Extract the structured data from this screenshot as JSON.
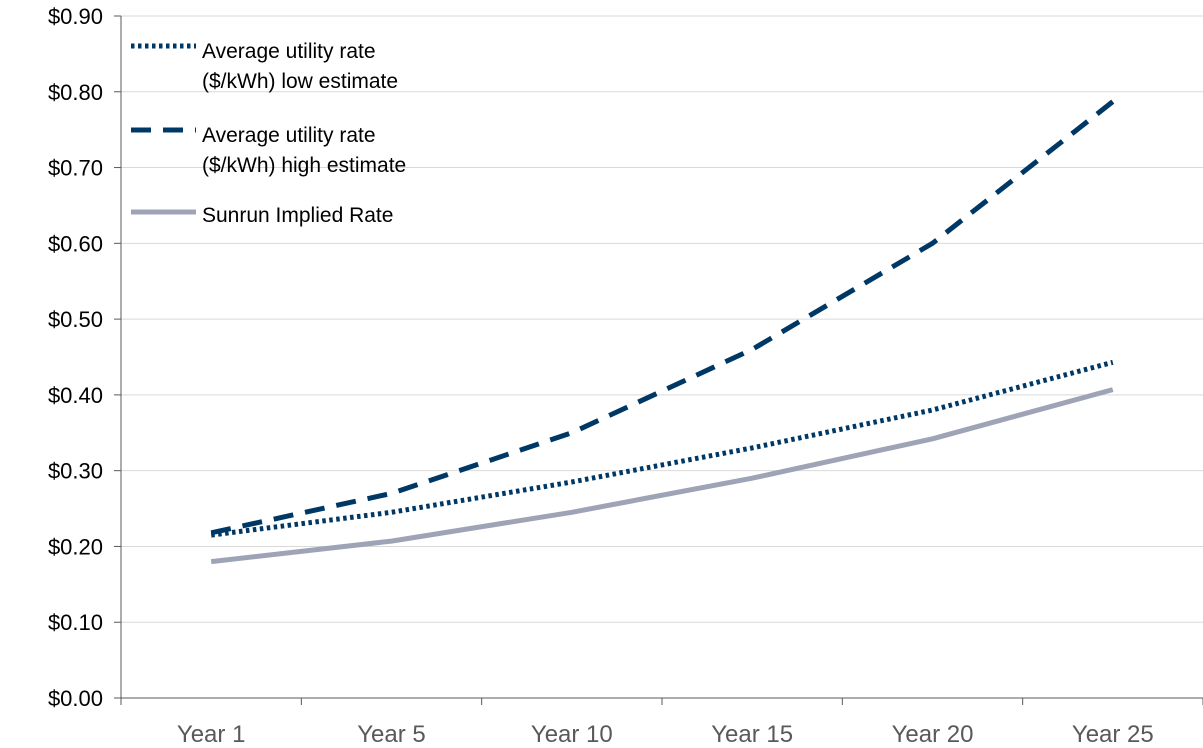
{
  "chart_data": {
    "type": "line",
    "categories": [
      "Year 1",
      "Year 5",
      "Year 10",
      "Year 15",
      "Year 20",
      "Year 25"
    ],
    "series": [
      {
        "name": "Average utility rate ($/kWh) low estimate",
        "legend_lines": [
          "Average utility rate",
          "($/kWh) low estimate"
        ],
        "values": [
          0.215,
          0.245,
          0.285,
          0.33,
          0.38,
          0.443
        ],
        "color": "#003865",
        "style": "dotted"
      },
      {
        "name": "Average utility rate ($/kWh) high estimate",
        "legend_lines": [
          "Average utility rate",
          "($/kWh) high estimate"
        ],
        "values": [
          0.218,
          0.27,
          0.35,
          0.46,
          0.6,
          0.787
        ],
        "color": "#003865",
        "style": "dashed"
      },
      {
        "name": "Sunrun Implied Rate",
        "legend_lines": [
          "Sunrun Implied Rate"
        ],
        "values": [
          0.18,
          0.207,
          0.245,
          0.29,
          0.342,
          0.407
        ],
        "color": "#9EA4B5",
        "style": "solid"
      }
    ],
    "y_ticks": [
      {
        "value": 0.0,
        "label": "$0.00"
      },
      {
        "value": 0.1,
        "label": "$0.10"
      },
      {
        "value": 0.2,
        "label": "$0.20"
      },
      {
        "value": 0.3,
        "label": "$0.30"
      },
      {
        "value": 0.4,
        "label": "$0.40"
      },
      {
        "value": 0.5,
        "label": "$0.50"
      },
      {
        "value": 0.6,
        "label": "$0.60"
      },
      {
        "value": 0.7,
        "label": "$0.70"
      },
      {
        "value": 0.8,
        "label": "$0.80"
      },
      {
        "value": 0.9,
        "label": "$0.90"
      }
    ],
    "ylim": [
      0,
      0.9
    ],
    "title": "",
    "xlabel": "",
    "ylabel": "",
    "grid": "horizontal",
    "legend_position": "top-left",
    "colors": {
      "gridline": "#D9D9D9",
      "axis": "#595959",
      "x_tick_text": "#595959"
    }
  }
}
